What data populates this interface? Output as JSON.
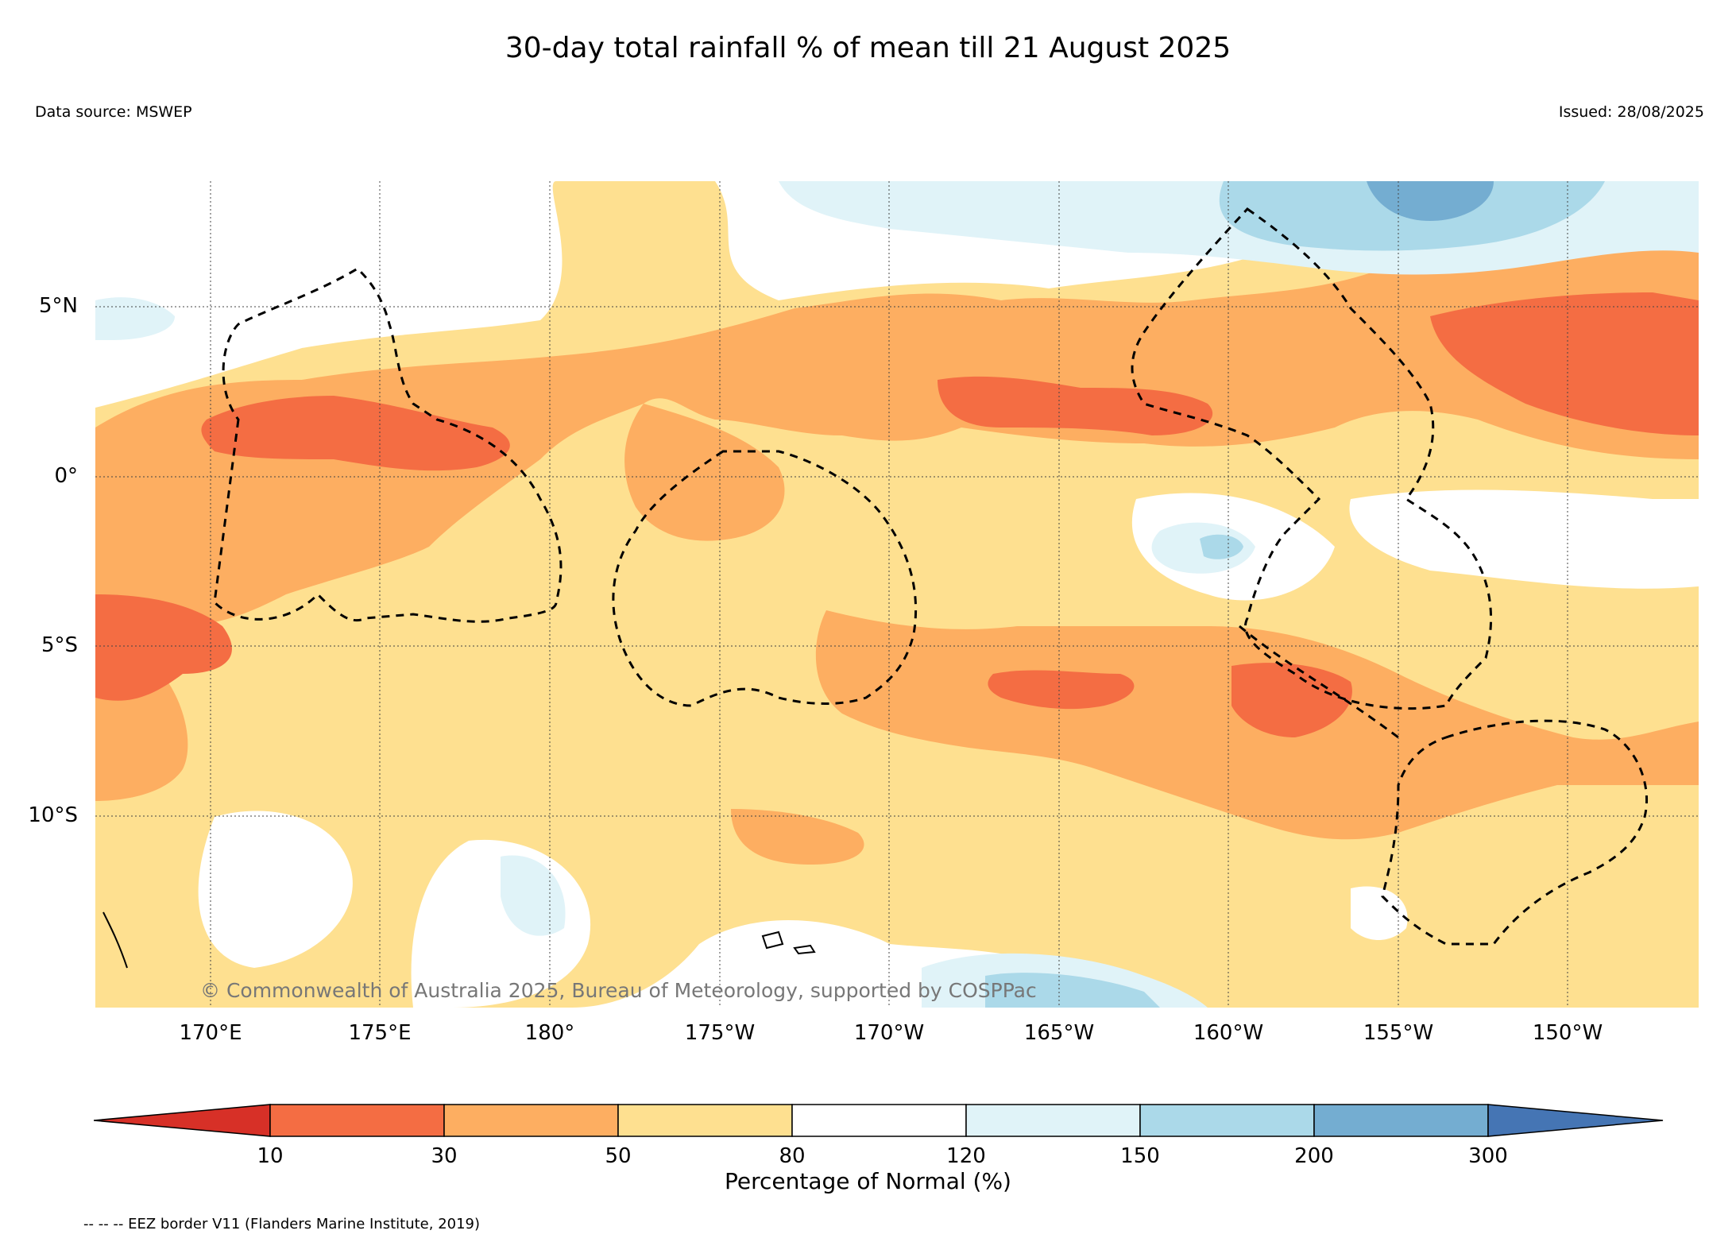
{
  "title": "30-day total rainfall % of mean till 21 August 2025",
  "data_source": "Data source: MSWEP",
  "issued": "Issued: 28/08/2025",
  "copyright": "© Commonwealth of Australia 2025, Bureau of Meteorology, supported by COSPPac",
  "footnote": "-- -- -- EEZ border V11 (Flanders Marine Institute, 2019)",
  "map": {
    "lat_labels": [
      "5°N",
      "0°",
      "5°S",
      "10°S"
    ],
    "lon_labels": [
      "170°E",
      "175°E",
      "180°",
      "175°W",
      "170°W",
      "165°W",
      "160°W",
      "155°W",
      "150°W"
    ],
    "lon_range": [
      166.7,
      213.8
    ],
    "lat_range": [
      -15.7,
      8.7
    ],
    "grid": true
  },
  "colorbar": {
    "label": "Percentage of Normal (%)",
    "ticks": [
      "10",
      "30",
      "50",
      "80",
      "120",
      "150",
      "200",
      "300"
    ],
    "colors": {
      "lt10": "#d73027",
      "10_30": "#f46d43",
      "30_50": "#fdae61",
      "50_80": "#fee090",
      "80_120": "#ffffff",
      "120_150": "#e0f3f8",
      "150_200": "#abd9e9",
      "200_300": "#74add1",
      "gt300": "#4575b4"
    }
  }
}
